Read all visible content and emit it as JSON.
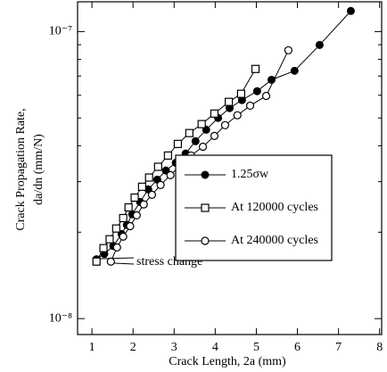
{
  "chart_data": {
    "type": "line",
    "xlabel": "Crack Length, 2a (mm)",
    "ylabel": [
      "Crack Propagation Rate,",
      "da/dn (mm/N)"
    ],
    "xlim": [
      0.65,
      8.05
    ],
    "xticks": [
      1,
      2,
      3,
      4,
      5,
      6,
      7,
      8
    ],
    "ylim": [
      8.8e-09,
      1.27e-07
    ],
    "log_y": true,
    "yticks": [
      {
        "value": 1e-08,
        "label": "10⁻⁸"
      },
      {
        "value": 1e-07,
        "label": "10⁻⁷"
      }
    ],
    "yminorticks": [
      2e-08,
      3e-08,
      4e-08,
      5e-08,
      6e-08,
      7e-08,
      8e-08,
      9e-08
    ],
    "legend": "center-right",
    "annotation": "stress change",
    "series": [
      {
        "name": "1.25σw",
        "color": "#000",
        "marker": "filled-circle",
        "x": [
          1.11,
          1.3,
          1.52,
          1.72,
          1.85,
          1.98,
          2.17,
          2.37,
          2.59,
          2.8,
          3.04,
          3.28,
          3.52,
          3.78,
          4.07,
          4.35,
          4.65,
          5.02,
          5.37,
          5.93,
          6.54,
          7.3
        ],
        "values": [
          1.61e-08,
          1.68e-08,
          1.79e-08,
          1.97e-08,
          2.12e-08,
          2.31e-08,
          2.55e-08,
          2.82e-08,
          3.05e-08,
          3.28e-08,
          3.49e-08,
          3.76e-08,
          4.15e-08,
          4.55e-08,
          5e-08,
          5.41e-08,
          5.77e-08,
          6.2e-08,
          6.79e-08,
          7.3e-08,
          8.98e-08,
          1.18e-07
        ]
      },
      {
        "name": "At 120000 cycles",
        "color": "#000",
        "marker": "open-square",
        "x": [
          1.11,
          1.28,
          1.43,
          1.59,
          1.76,
          1.89,
          2.04,
          2.22,
          2.39,
          2.61,
          2.85,
          3.09,
          3.37,
          3.67,
          3.98,
          4.33,
          4.63,
          4.98
        ],
        "values": [
          1.58e-08,
          1.76e-08,
          1.89e-08,
          2.06e-08,
          2.24e-08,
          2.44e-08,
          2.64e-08,
          2.88e-08,
          3.1e-08,
          3.38e-08,
          3.7e-08,
          4.06e-08,
          4.43e-08,
          4.76e-08,
          5.18e-08,
          5.69e-08,
          6.07e-08,
          7.41e-08
        ]
      },
      {
        "name": "At 240000 cycles",
        "color": "#000",
        "marker": "open-circle",
        "x": [
          1.46,
          1.61,
          1.76,
          1.93,
          2.09,
          2.26,
          2.46,
          2.67,
          2.91,
          3.15,
          3.41,
          3.7,
          3.98,
          4.24,
          4.54,
          4.85,
          5.24,
          5.78
        ],
        "values": [
          1.58e-08,
          1.77e-08,
          1.93e-08,
          2.1e-08,
          2.29e-08,
          2.5e-08,
          2.7e-08,
          2.92e-08,
          3.16e-08,
          3.42e-08,
          3.7e-08,
          3.97e-08,
          4.33e-08,
          4.72e-08,
          5.11e-08,
          5.52e-08,
          5.97e-08,
          8.61e-08
        ]
      }
    ]
  }
}
